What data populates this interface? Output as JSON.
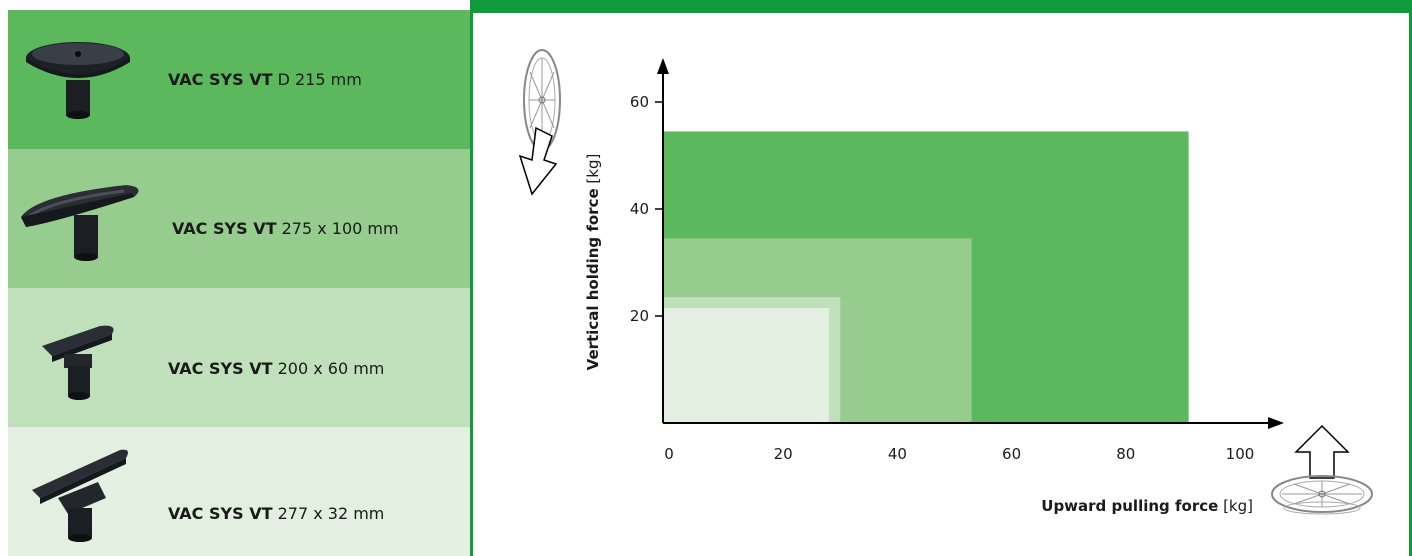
{
  "products": [
    {
      "name_bold": "VAC SYS VT",
      "size": "D 215 mm",
      "color": "#5cb85c"
    },
    {
      "name_bold": "VAC SYS VT",
      "size": "275 x 100 mm",
      "color": "#97cc8f"
    },
    {
      "name_bold": "VAC SYS VT",
      "size": "200 x 60 mm",
      "color": "#bfe0bb"
    },
    {
      "name_bold": "VAC SYS VT",
      "size": "277 x 32 mm",
      "color": "#e3efe0"
    }
  ],
  "chart_data": {
    "type": "area",
    "title": "",
    "xlabel_bold": "Upward pulling force",
    "xlabel_unit": "[kg]",
    "ylabel_bold": "Vertical holding force",
    "ylabel_unit": "[kg]",
    "xlim": [
      0,
      105
    ],
    "ylim": [
      0,
      65
    ],
    "x_ticks": [
      0,
      20,
      40,
      60,
      80,
      100
    ],
    "y_ticks": [
      20,
      40,
      60
    ],
    "series": [
      {
        "name": "VAC SYS VT D 215 mm",
        "x": 91,
        "y": 54.5,
        "color": "#5cb85c"
      },
      {
        "name": "VAC SYS VT 275 x 100 mm",
        "x": 53,
        "y": 34.5,
        "color": "#97cc8f"
      },
      {
        "name": "VAC SYS VT 200 x 60 mm",
        "x": 30,
        "y": 23.5,
        "color": "#bfe0bb"
      },
      {
        "name": "VAC SYS VT 277 x 32 mm",
        "x": 28,
        "y": 21.5,
        "color": "#e3efe0"
      }
    ],
    "grid": false,
    "legend": "none"
  },
  "icons": {
    "down_arrow": "down-arrow-icon",
    "up_arrow": "up-arrow-icon",
    "wheel_vertical": "wheel-vertical-icon",
    "wheel_horizontal": "wheel-horizontal-icon"
  }
}
